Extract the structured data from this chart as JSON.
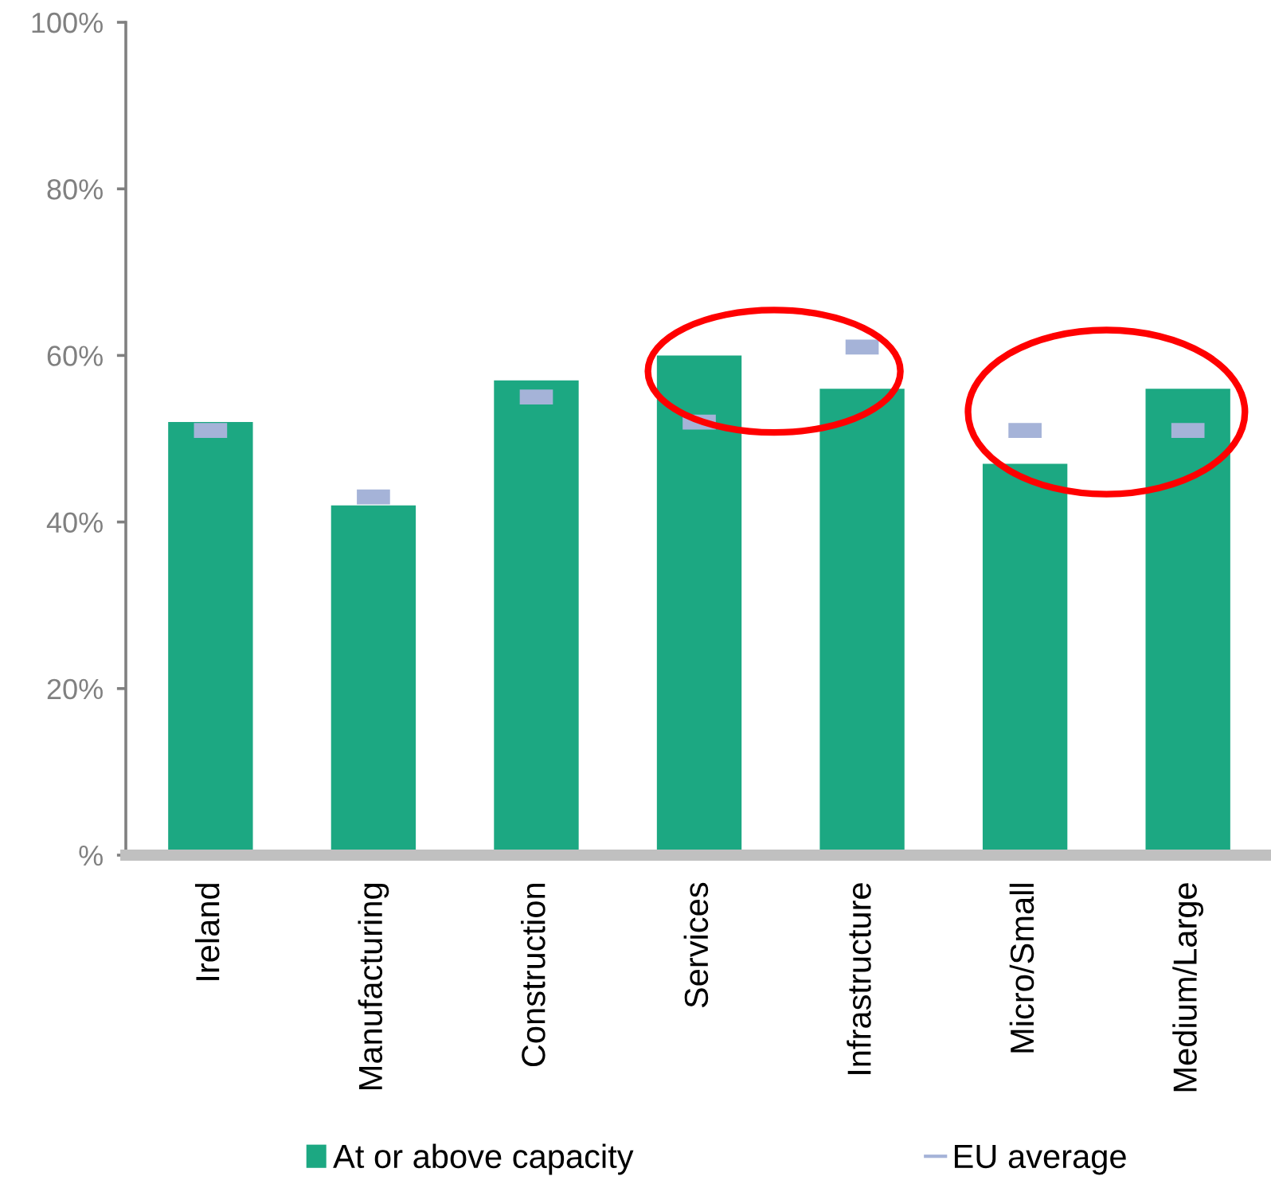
{
  "chart_data": {
    "type": "bar",
    "categories": [
      "Ireland",
      "Manufacturing",
      "Construction",
      "Services",
      "Infrastructure",
      "Micro/Small",
      "Medium/Large"
    ],
    "ylim": [
      0,
      100
    ],
    "yticks": [
      {
        "value": 0,
        "label": "%"
      },
      {
        "value": 20,
        "label": "20%"
      },
      {
        "value": 40,
        "label": "40%"
      },
      {
        "value": 60,
        "label": "60%"
      },
      {
        "value": 80,
        "label": "80%"
      },
      {
        "value": 100,
        "label": "100%"
      }
    ],
    "series": [
      {
        "name": "At or above capacity",
        "color": "#1ca882",
        "values": [
          52,
          42,
          57,
          60,
          56,
          47,
          56
        ]
      },
      {
        "name": "EU average",
        "type": "scatter",
        "color": "#a5b3d8",
        "x": [
          "Ireland",
          "Manufacturing",
          "Construction",
          "Services",
          "Infrastructure",
          "Micro/Small",
          "Medium/Large"
        ],
        "values": [
          51,
          43,
          55,
          52,
          61,
          51,
          51
        ]
      }
    ],
    "legend": "bottom"
  }
}
